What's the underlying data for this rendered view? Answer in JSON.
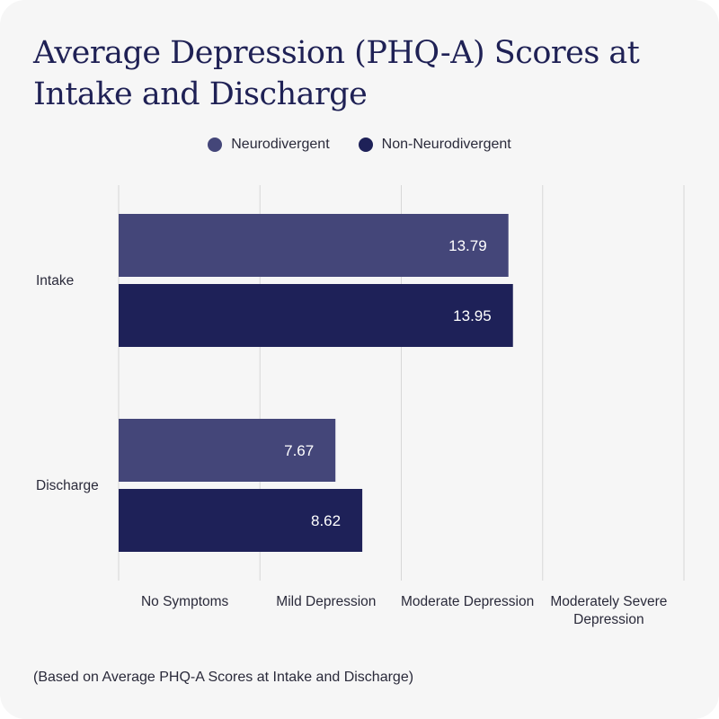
{
  "title": "Average Depression (PHQ-A) Scores at Intake and Discharge",
  "note": "(Based on Average PHQ-A Scores at Intake and Discharge)",
  "colors": {
    "neurodivergent": "#444679",
    "non_neurodivergent": "#1e2158",
    "grid": "#d7d7d7",
    "background": "#f6f6f6"
  },
  "chart_data": {
    "type": "bar",
    "orientation": "horizontal",
    "title": "Average Depression (PHQ-A) Scores at Intake and Discharge",
    "categories": [
      "Intake",
      "Discharge"
    ],
    "series": [
      {
        "name": "Neurodivergent",
        "values": [
          13.79,
          7.67
        ]
      },
      {
        "name": "Non-Neurodivergent",
        "values": [
          13.95,
          8.62
        ]
      }
    ],
    "value_labels": [
      [
        "13.79",
        "7.67"
      ],
      [
        "13.95",
        "8.62"
      ]
    ],
    "x_bands": [
      "No Symptoms",
      "Mild Depression",
      "Moderate Depression",
      "Moderately Severe Depression"
    ],
    "x_band_lines": [
      [
        "No Symptoms"
      ],
      [
        "Mild Depression"
      ],
      [
        "Moderate Depression"
      ],
      [
        "Moderately Severe",
        "Depression"
      ]
    ],
    "xlim": [
      0,
      20
    ],
    "band_edges": [
      0,
      5,
      10,
      15,
      20
    ],
    "grid": true,
    "legend_position": "top"
  }
}
